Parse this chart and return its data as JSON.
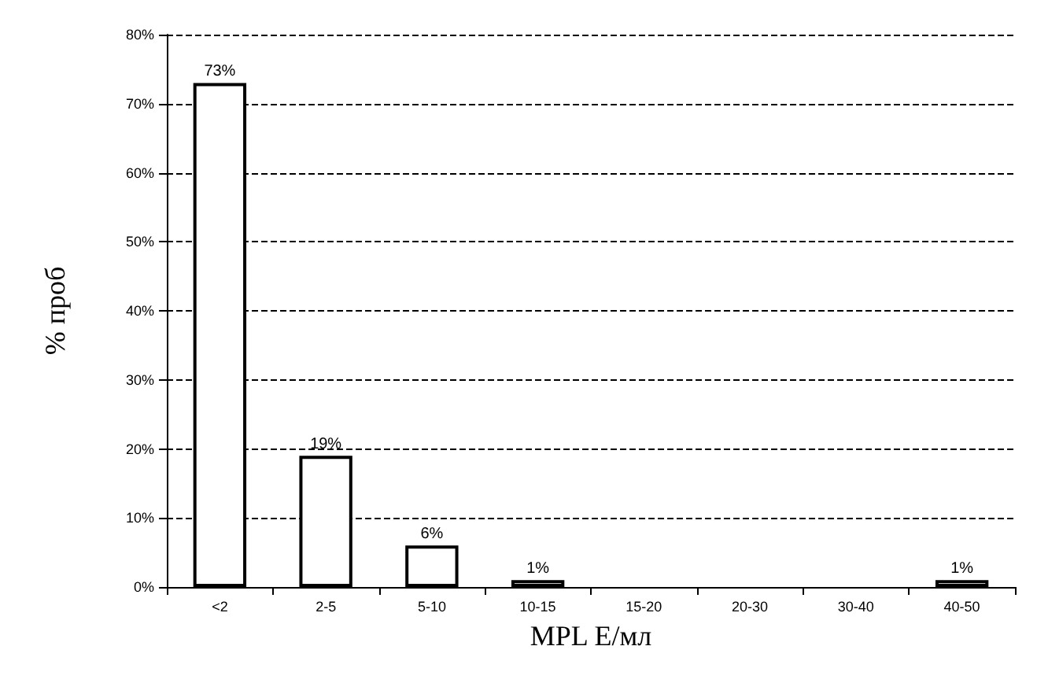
{
  "chart_data": {
    "type": "bar",
    "xlabel": "MPL Е/мл",
    "ylabel": "% проб",
    "categories": [
      "<2",
      "2-5",
      "5-10",
      "10-15",
      "15-20",
      "20-30",
      "30-40",
      "40-50"
    ],
    "values": [
      73,
      19,
      6,
      1,
      0,
      0,
      0,
      1
    ],
    "value_labels": [
      "73%",
      "19%",
      "6%",
      "1%",
      null,
      null,
      null,
      "1%"
    ],
    "color": "#ffffff",
    "ylim": [
      0,
      80
    ],
    "yticks": [
      {
        "value": 0,
        "label": "0%"
      },
      {
        "value": 10,
        "label": "10%"
      },
      {
        "value": 20,
        "label": "20%"
      },
      {
        "value": 30,
        "label": "30%"
      },
      {
        "value": 40,
        "label": "40%"
      },
      {
        "value": 50,
        "label": "50%"
      },
      {
        "value": 60,
        "label": "60%"
      },
      {
        "value": 70,
        "label": "70%"
      },
      {
        "value": 80,
        "label": "80%"
      }
    ],
    "grid": "y"
  }
}
